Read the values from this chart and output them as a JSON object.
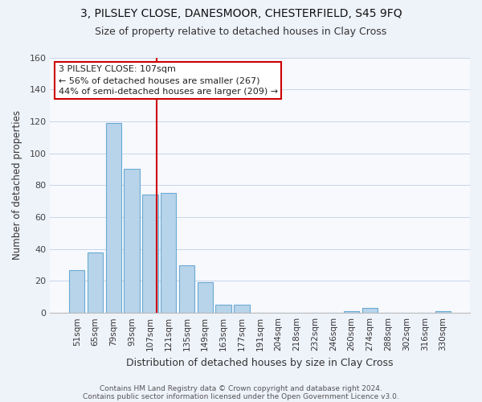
{
  "title1": "3, PILSLEY CLOSE, DANESMOOR, CHESTERFIELD, S45 9FQ",
  "title2": "Size of property relative to detached houses in Clay Cross",
  "xlabel": "Distribution of detached houses by size in Clay Cross",
  "ylabel": "Number of detached properties",
  "bar_labels": [
    "51sqm",
    "65sqm",
    "79sqm",
    "93sqm",
    "107sqm",
    "121sqm",
    "135sqm",
    "149sqm",
    "163sqm",
    "177sqm",
    "191sqm",
    "204sqm",
    "218sqm",
    "232sqm",
    "246sqm",
    "260sqm",
    "274sqm",
    "288sqm",
    "302sqm",
    "316sqm",
    "330sqm"
  ],
  "bar_heights": [
    27,
    38,
    119,
    90,
    74,
    75,
    30,
    19,
    5,
    5,
    0,
    0,
    0,
    0,
    0,
    1,
    3,
    0,
    0,
    0,
    1
  ],
  "bar_color": "#b8d4ea",
  "bar_edge_color": "#6aaad4",
  "vline_color": "#cc0000",
  "vline_x_index": 4,
  "ylim": [
    0,
    160
  ],
  "yticks": [
    0,
    20,
    40,
    60,
    80,
    100,
    120,
    140,
    160
  ],
  "annotation_title": "3 PILSLEY CLOSE: 107sqm",
  "annotation_line1": "← 56% of detached houses are smaller (267)",
  "annotation_line2": "44% of semi-detached houses are larger (209) →",
  "footer1": "Contains HM Land Registry data © Crown copyright and database right 2024.",
  "footer2": "Contains public sector information licensed under the Open Government Licence v3.0.",
  "bg_color": "#eef2f9",
  "plot_bg_color": "#f7f9fd",
  "grid_color": "#c8d4e8",
  "title1_fontsize": 10,
  "title2_fontsize": 9,
  "xlabel_fontsize": 9,
  "ylabel_fontsize": 8.5,
  "tick_fontsize": 7.5,
  "annotation_fontsize": 8,
  "footer_fontsize": 6.5
}
